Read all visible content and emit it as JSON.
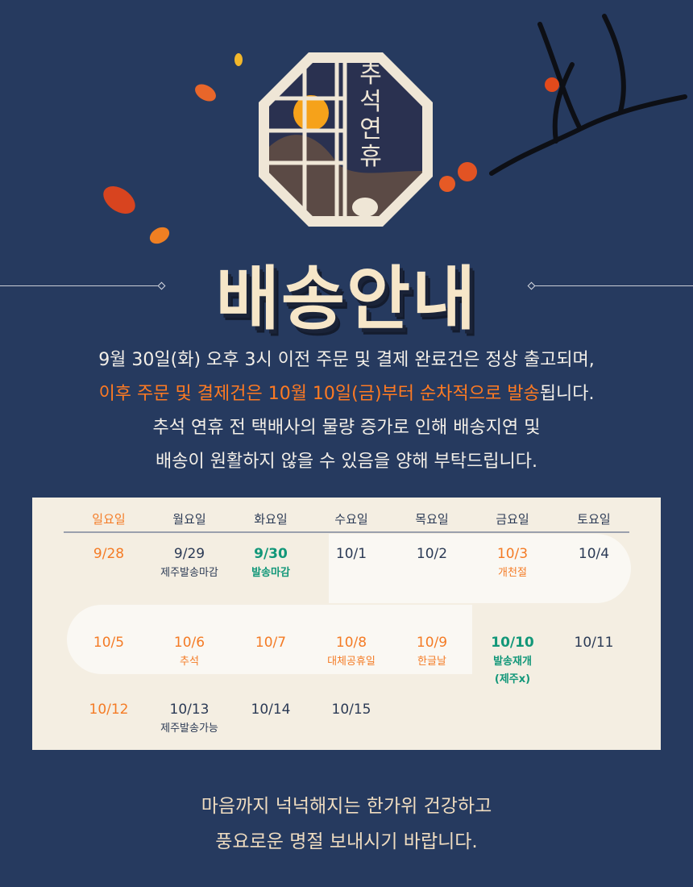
{
  "emblem": {
    "text": "추석연휴"
  },
  "title": "배송안내",
  "notice": {
    "line1": "9월 30일(화) 오후 3시 이전 주문 및 결제 완료건은 정상 출고되며,",
    "line2_highlight": "이후 주문 및 결제건은 10월 10일(금)부터 순차적으로 발송",
    "line2_rest": "됩니다.",
    "line3": "추석 연휴 전 택배사의 물량 증가로 인해 배송지연 및",
    "line4": "배송이 원활하지 않을 수 있음을 양해 부탁드립니다."
  },
  "colors": {
    "background": "#263a5f",
    "accent": "#f47b25",
    "green": "#129779",
    "title": "#f6e6c8"
  },
  "calendar": {
    "weekdays": [
      "일요일",
      "월요일",
      "화요일",
      "수요일",
      "목요일",
      "금요일",
      "토요일"
    ],
    "rows": [
      [
        {
          "date": "9/28",
          "style": "o"
        },
        {
          "date": "9/29",
          "note": "제주발송마감"
        },
        {
          "date": "9/30",
          "note": "발송마감",
          "style": "g"
        },
        {
          "date": "10/1"
        },
        {
          "date": "10/2"
        },
        {
          "date": "10/3",
          "note": "개천절",
          "style": "o"
        },
        {
          "date": "10/4"
        }
      ],
      [
        {
          "date": "10/5",
          "style": "o"
        },
        {
          "date": "10/6",
          "note": "추석",
          "style": "o"
        },
        {
          "date": "10/7",
          "style": "o"
        },
        {
          "date": "10/8",
          "note": "대체공휴일",
          "style": "o"
        },
        {
          "date": "10/9",
          "note": "한글날",
          "style": "o"
        },
        {
          "date": "10/10",
          "note": "발송재개",
          "note2": "(제주x)",
          "style": "g"
        },
        {
          "date": "10/11"
        }
      ],
      [
        {
          "date": "10/12",
          "style": "o"
        },
        {
          "date": "10/13",
          "note": "제주발송가능"
        },
        {
          "date": "10/14"
        },
        {
          "date": "10/15"
        }
      ]
    ]
  },
  "footer": {
    "line1": "마음까지 넉넉해지는 한가위  건강하고",
    "line2": "풍요로운 명절 보내시기 바랍니다."
  }
}
